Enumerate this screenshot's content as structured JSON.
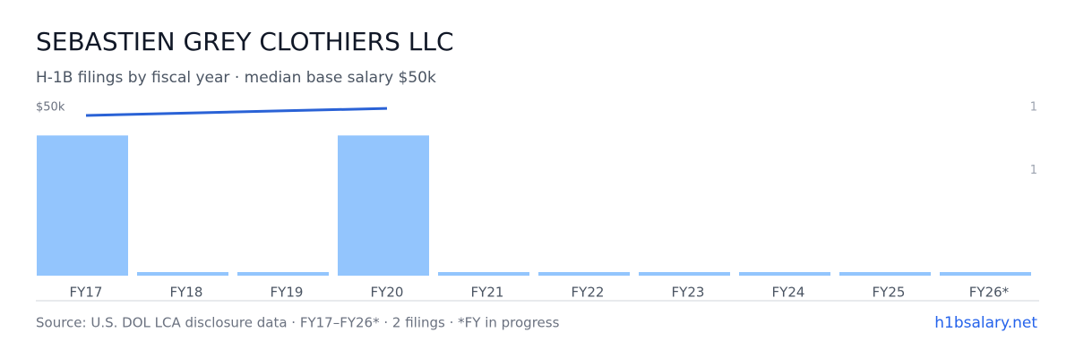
{
  "chart_data": {
    "type": "bar",
    "title": "SEBASTIEN GREY CLOTHIERS LLC",
    "subtitle": "H-1B filings by fiscal year · median base salary $50k",
    "categories": [
      "FY17",
      "FY18",
      "FY19",
      "FY20",
      "FY21",
      "FY22",
      "FY23",
      "FY24",
      "FY25",
      "FY26*"
    ],
    "series": [
      {
        "type": "bar",
        "axis": "y2",
        "color": "#93c5fd",
        "values": [
          1,
          0,
          0,
          1,
          0,
          0,
          0,
          0,
          0,
          0
        ]
      },
      {
        "type": "line",
        "color": "#2a62d6",
        "x": [
          "FY17",
          "FY20"
        ],
        "values": [
          47600,
          49700
        ]
      }
    ],
    "ylim": [
      0,
      50000
    ],
    "yticks": [
      {
        "value": 50000,
        "label": "$50k"
      }
    ],
    "y2lim": [
      0,
      1.2
    ],
    "y2ticks": [
      {
        "value": 1.2,
        "label": "1"
      },
      {
        "value": 0.75,
        "label": "1"
      }
    ],
    "grid": false,
    "footer": {
      "source": "Source: U.S. DOL LCA disclosure data · FY17–FY26* · 2 filings · *FY in progress",
      "site": "h1bsalary.net"
    }
  }
}
